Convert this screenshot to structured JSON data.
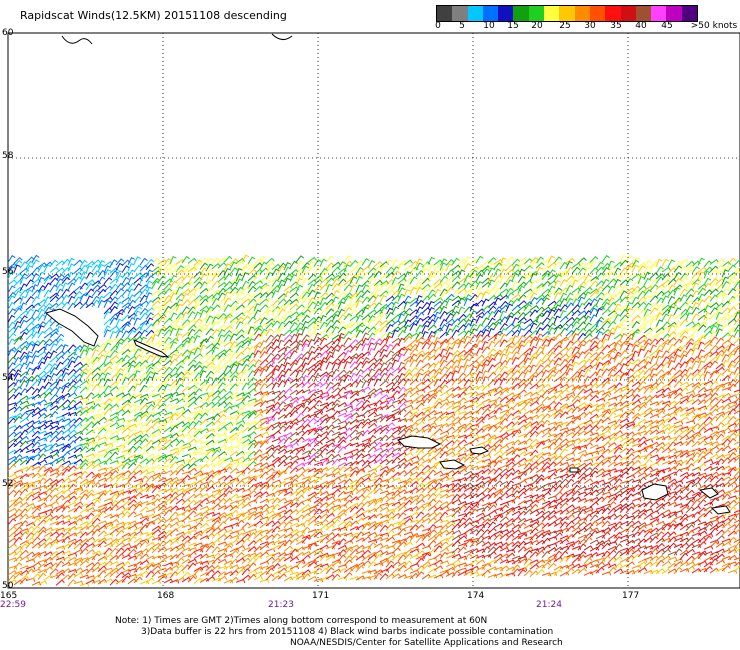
{
  "title": "Rapidscat Winds(12.5KM) 20151108 descending",
  "colorbar": {
    "colors": [
      "#404040",
      "#7f7f7f",
      "#00c8ff",
      "#0070ff",
      "#1010c0",
      "#10a010",
      "#20d020",
      "#ffff40",
      "#ffc800",
      "#ff8c00",
      "#ff5000",
      "#ff1010",
      "#d01010",
      "#a05030",
      "#ff40ff",
      "#c000c0",
      "#500080"
    ],
    "labels": [
      "0",
      "5",
      "10",
      "15",
      "20",
      "25",
      "30",
      "35",
      "40",
      "45",
      ">50 knots"
    ]
  },
  "lat_labels": [
    "60",
    "58",
    "56",
    "54",
    "52",
    "50"
  ],
  "lon_labels": [
    "165",
    "168",
    "171",
    "174",
    "177"
  ],
  "time_labels": [
    "22:59",
    "21:23",
    "21:24"
  ],
  "notes": [
    "Note: 1) Times are GMT 2)Times along bottom correspond to measurement at 60N",
    "3)Data buffer is 22 hrs from 20151108 4) Black wind barbs indicate possible contamination",
    "NOAA/NESDIS/Center for Satellite Applications and Research"
  ]
}
